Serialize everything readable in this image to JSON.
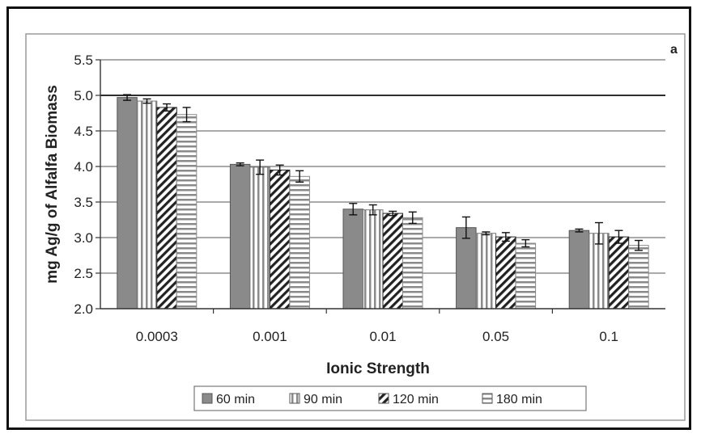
{
  "chart_data": {
    "type": "bar",
    "title": "",
    "panel_label": "a",
    "xlabel": "Ionic Strength",
    "ylabel": "mg Ag/g of Alfalfa Biomass",
    "ylim": [
      2.0,
      5.5
    ],
    "yticks": [
      "2.0",
      "2.5",
      "3.0",
      "3.5",
      "4.0",
      "4.5",
      "5.0",
      "5.5"
    ],
    "grid": true,
    "legend_position": "bottom",
    "categories": [
      "0.0003",
      "0.001",
      "0.01",
      "0.05",
      "0.1"
    ],
    "series": [
      {
        "name": "60 min",
        "values": [
          4.97,
          4.03,
          3.4,
          3.14,
          3.1
        ],
        "errors": [
          0.04,
          0.02,
          0.08,
          0.15,
          0.02
        ],
        "fill": "solid-gray"
      },
      {
        "name": "90 min",
        "values": [
          4.92,
          3.99,
          3.39,
          3.06,
          3.06
        ],
        "errors": [
          0.03,
          0.1,
          0.07,
          0.02,
          0.15
        ],
        "fill": "vertical-lines"
      },
      {
        "name": "120 min",
        "values": [
          4.83,
          3.95,
          3.34,
          3.01,
          3.01
        ],
        "errors": [
          0.05,
          0.07,
          0.03,
          0.06,
          0.09
        ],
        "fill": "diagonal-hatch"
      },
      {
        "name": "180 min",
        "values": [
          4.73,
          3.86,
          3.28,
          2.92,
          2.89
        ],
        "errors": [
          0.1,
          0.08,
          0.08,
          0.05,
          0.07
        ],
        "fill": "horizontal-lines"
      }
    ]
  }
}
